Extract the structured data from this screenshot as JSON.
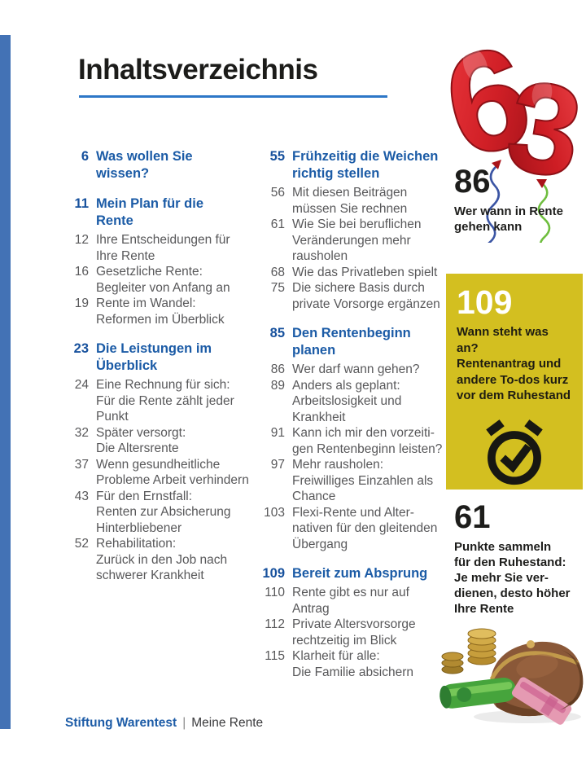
{
  "title": "Inhaltsverzeichnis",
  "toc": {
    "columns": [
      {
        "sections": [
          {
            "page": "6",
            "title": "Was wollen Sie\nwissen?",
            "entries": []
          },
          {
            "page": "11",
            "title": "Mein Plan für die\nRente",
            "entries": [
              {
                "page": "12",
                "text": "Ihre Entscheidungen für\nIhre Rente"
              },
              {
                "page": "16",
                "text": "Gesetzliche Rente:\nBegleiter von Anfang an"
              },
              {
                "page": "19",
                "text": "Rente im Wandel:\nReformen im Überblick"
              }
            ]
          },
          {
            "page": "23",
            "title": "Die Leistungen im\nÜberblick",
            "entries": [
              {
                "page": "24",
                "text": "Eine Rechnung für sich:\nFür die Rente zählt jeder\nPunkt"
              },
              {
                "page": "32",
                "text": "Später versorgt:\nDie Altersrente"
              },
              {
                "page": "37",
                "text": "Wenn gesundheitliche\nProbleme Arbeit verhindern"
              },
              {
                "page": "43",
                "text": "Für den Ernstfall:\nRenten zur Absicherung\nHinterbliebener"
              },
              {
                "page": "52",
                "text": "Rehabilitation:\nZurück in den Job nach\nschwerer Krankheit"
              }
            ]
          }
        ]
      },
      {
        "sections": [
          {
            "page": "55",
            "title": "Frühzeitig die Weichen\nrichtig stellen",
            "entries": [
              {
                "page": "56",
                "text": "Mit diesen Beiträgen\nmüssen Sie rechnen"
              },
              {
                "page": "61",
                "text": "Wie Sie bei beruflichen\nVeränderungen mehr\nrausholen"
              },
              {
                "page": "68",
                "text": "Wie das Privatleben spielt"
              },
              {
                "page": "75",
                "text": "Die sichere Basis durch\nprivate Vorsorge ergänzen"
              }
            ]
          },
          {
            "page": "85",
            "title": "Den Rentenbeginn\nplanen",
            "entries": [
              {
                "page": "86",
                "text": "Wer darf wann gehen?"
              },
              {
                "page": "89",
                "text": "Anders als geplant:\nArbeitslosigkeit und\nKrankheit"
              },
              {
                "page": "91",
                "text": "Kann ich mir den vorzeiti-\ngen Rentenbeginn leisten?"
              },
              {
                "page": "97",
                "text": "Mehr rausholen:\nFreiwilliges Einzahlen als\nChance"
              },
              {
                "page": "103",
                "text": "Flexi-Rente und Alter-\nnativen für den gleitenden\nÜbergang"
              }
            ]
          },
          {
            "page": "109",
            "title": "Bereit zum Absprung",
            "entries": [
              {
                "page": "110",
                "text": "Rente gibt es nur auf\nAntrag"
              },
              {
                "page": "112",
                "text": "Private Altersvorsorge\nrechtzeitig im Blick"
              },
              {
                "page": "115",
                "text": "Klarheit für alle:\nDie Familie absichern"
              }
            ]
          }
        ]
      }
    ]
  },
  "sidebar": {
    "balloon_digits": [
      "6",
      "3"
    ],
    "ref_86": {
      "page": "86",
      "caption": "Wer wann in Rente\ngehen kann"
    },
    "ref_109": {
      "page": "109",
      "caption": "Wann steht was an?\nRentenantrag und\nandere To-dos kurz\nvor dem Ruhestand"
    },
    "ref_61": {
      "page": "61",
      "caption": "Punkte sammeln\nfür den Ruhestand:\nJe mehr Sie ver-\ndienen, desto höher\nIhre Rente"
    }
  },
  "footer": {
    "publisher": "Stiftung Warentest",
    "separator": "|",
    "book": "Meine Rente"
  },
  "colors": {
    "accent_blue": "#1b5ba6",
    "underline_blue": "#2d77c7",
    "edge_bar_blue": "#4372b5",
    "body_gray": "#58585a",
    "highlight_yellow": "#d3bf20",
    "balloon_red": "#d01f26"
  }
}
